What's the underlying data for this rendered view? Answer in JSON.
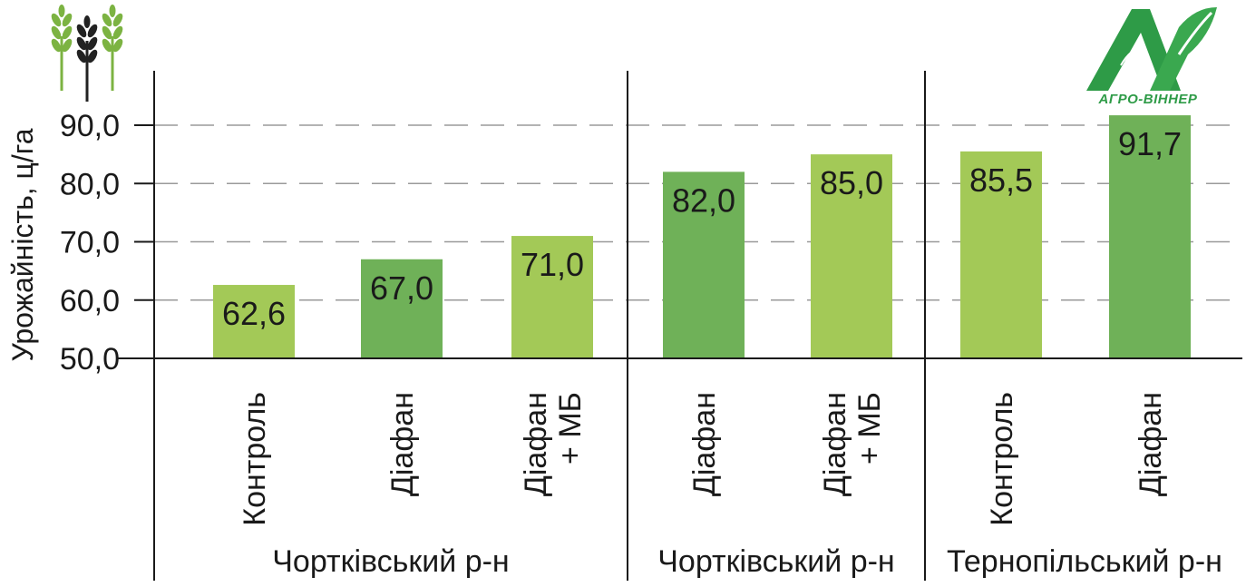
{
  "logo": {
    "text": "АГРО-ВІННЕР",
    "color": "#2e9b47"
  },
  "colors": {
    "light_green": "#a3c957",
    "dark_green": "#6fb158",
    "axis": "#1a1a1a",
    "grid": "#9a9a9a"
  },
  "chart_data": {
    "type": "bar",
    "ylabel": "Урожайність, ц/га",
    "ylim": [
      50,
      90
    ],
    "yticks": [
      "50,0",
      "60,0",
      "70,0",
      "80,0",
      "90,0"
    ],
    "ytick_values": [
      50,
      60,
      70,
      80,
      90
    ],
    "grid": "horizontal dashed",
    "bars": [
      {
        "category": [
          "Контроль"
        ],
        "value": 62.6,
        "label": "62,6",
        "group": 0,
        "color": "light"
      },
      {
        "category": [
          "Діафан"
        ],
        "value": 67.0,
        "label": "67,0",
        "group": 0,
        "color": "dark"
      },
      {
        "category": [
          "Діафан",
          "+ МБ"
        ],
        "value": 71.0,
        "label": "71,0",
        "group": 0,
        "color": "light"
      },
      {
        "category": [
          "Діафан"
        ],
        "value": 82.0,
        "label": "82,0",
        "group": 1,
        "color": "dark"
      },
      {
        "category": [
          "Діафан",
          "+ МБ"
        ],
        "value": 85.0,
        "label": "85,0",
        "group": 1,
        "color": "light"
      },
      {
        "category": [
          "Контроль"
        ],
        "value": 85.5,
        "label": "85,5",
        "group": 2,
        "color": "light"
      },
      {
        "category": [
          "Діафан"
        ],
        "value": 91.7,
        "label": "91,7",
        "group": 2,
        "color": "dark"
      }
    ],
    "groups": [
      "Чортківський р-н",
      "Чортківський р-н",
      "Тернопільський р-н"
    ]
  }
}
